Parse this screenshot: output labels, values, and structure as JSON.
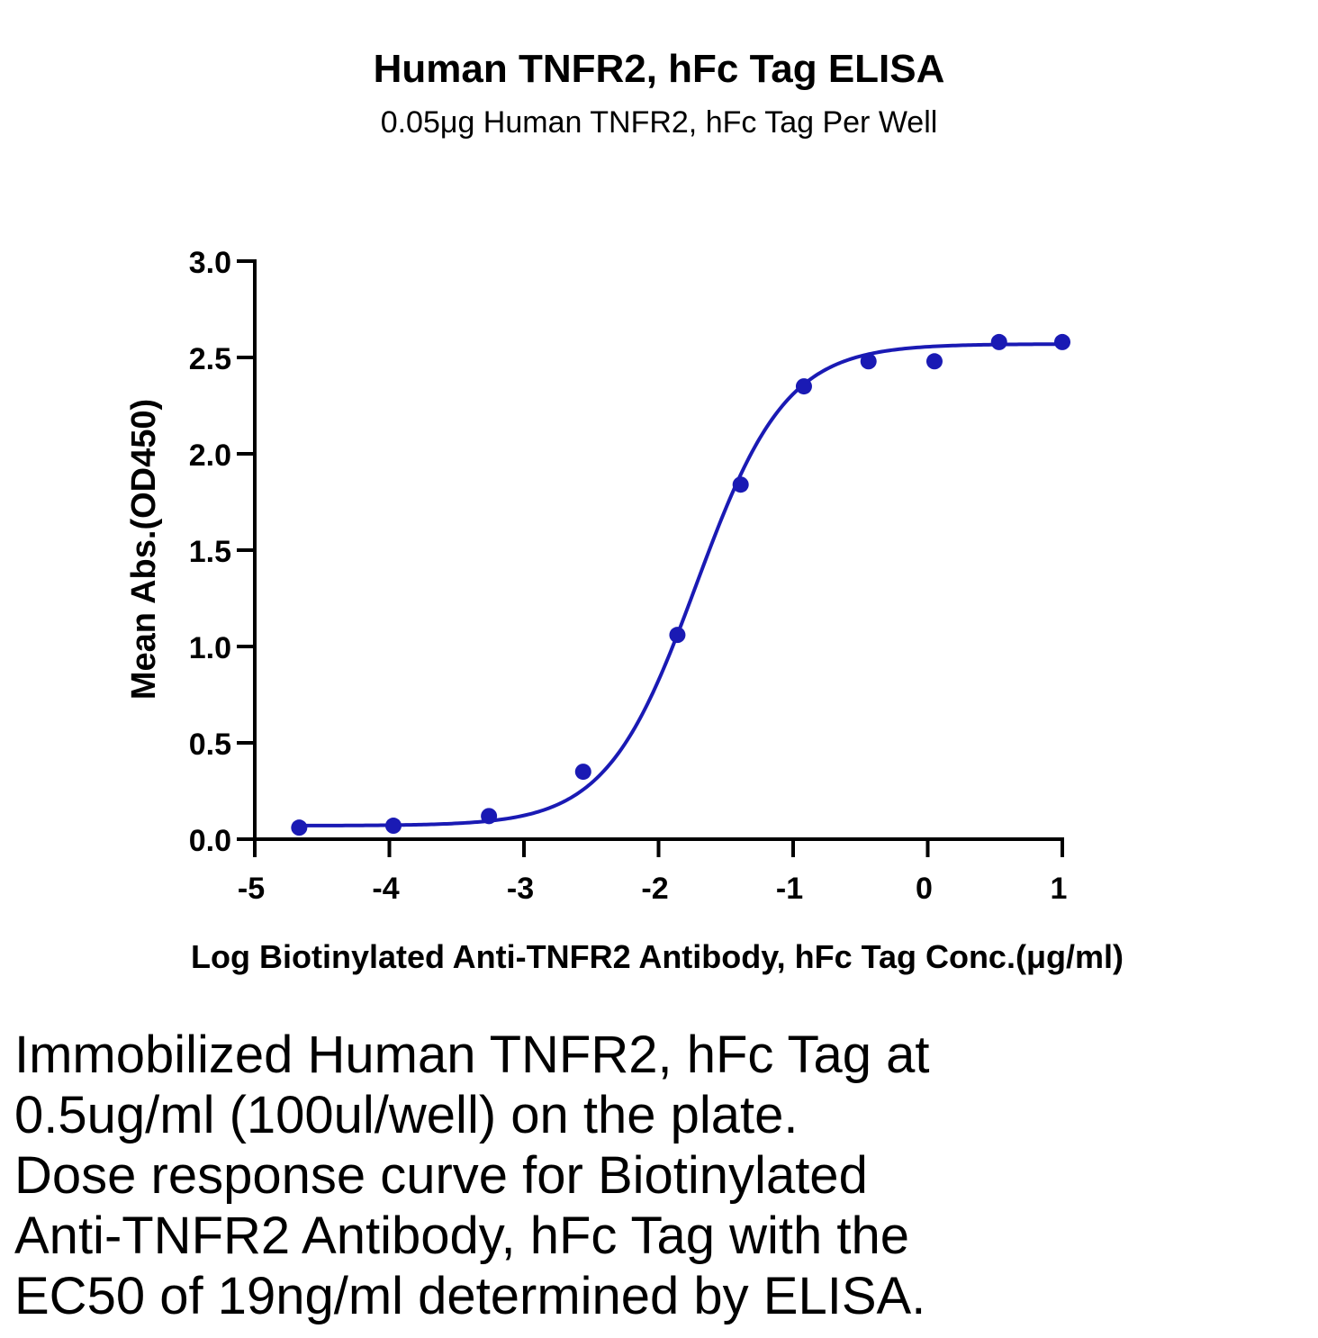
{
  "chart_data": {
    "type": "scatter",
    "title": "Human TNFR2, hFc Tag ELISA",
    "subtitle": "0.05μg Human TNFR2, hFc Tag Per Well",
    "xlabel": "Log Biotinylated Anti-TNFR2 Antibody, hFc Tag Conc.(μg/ml)",
    "ylabel": "Mean Abs.(OD450)",
    "xlim": [
      -5,
      1
    ],
    "ylim": [
      0,
      3.0
    ],
    "xticks": [
      "-5",
      "-4",
      "-3",
      "-2",
      "-1",
      "0",
      "1"
    ],
    "yticks": [
      "0.0",
      "0.5",
      "1.0",
      "1.5",
      "2.0",
      "2.5",
      "3.0"
    ],
    "grid": false,
    "legend": "none",
    "color": "#1a1ab4",
    "series": [
      {
        "x": [
          -4.67,
          -3.97,
          -3.26,
          -2.56,
          -1.86,
          -1.39,
          -0.92,
          -0.44,
          0.05,
          0.53,
          1.0
        ],
        "y": [
          0.06,
          0.07,
          0.12,
          0.35,
          1.06,
          1.84,
          2.35,
          2.48,
          2.48,
          2.58,
          2.58
        ]
      }
    ],
    "fit": {
      "model": "4PL",
      "bottom": 0.07,
      "top": 2.57,
      "log_ec50": -1.72,
      "hill": 1.3
    }
  },
  "caption": [
    "Immobilized Human TNFR2, hFc Tag at",
    "0.5ug/ml (100ul/well) on the plate.",
    "Dose response curve for Biotinylated",
    "Anti-TNFR2 Antibody, hFc Tag with the",
    "EC50 of 19ng/ml determined by ELISA."
  ]
}
